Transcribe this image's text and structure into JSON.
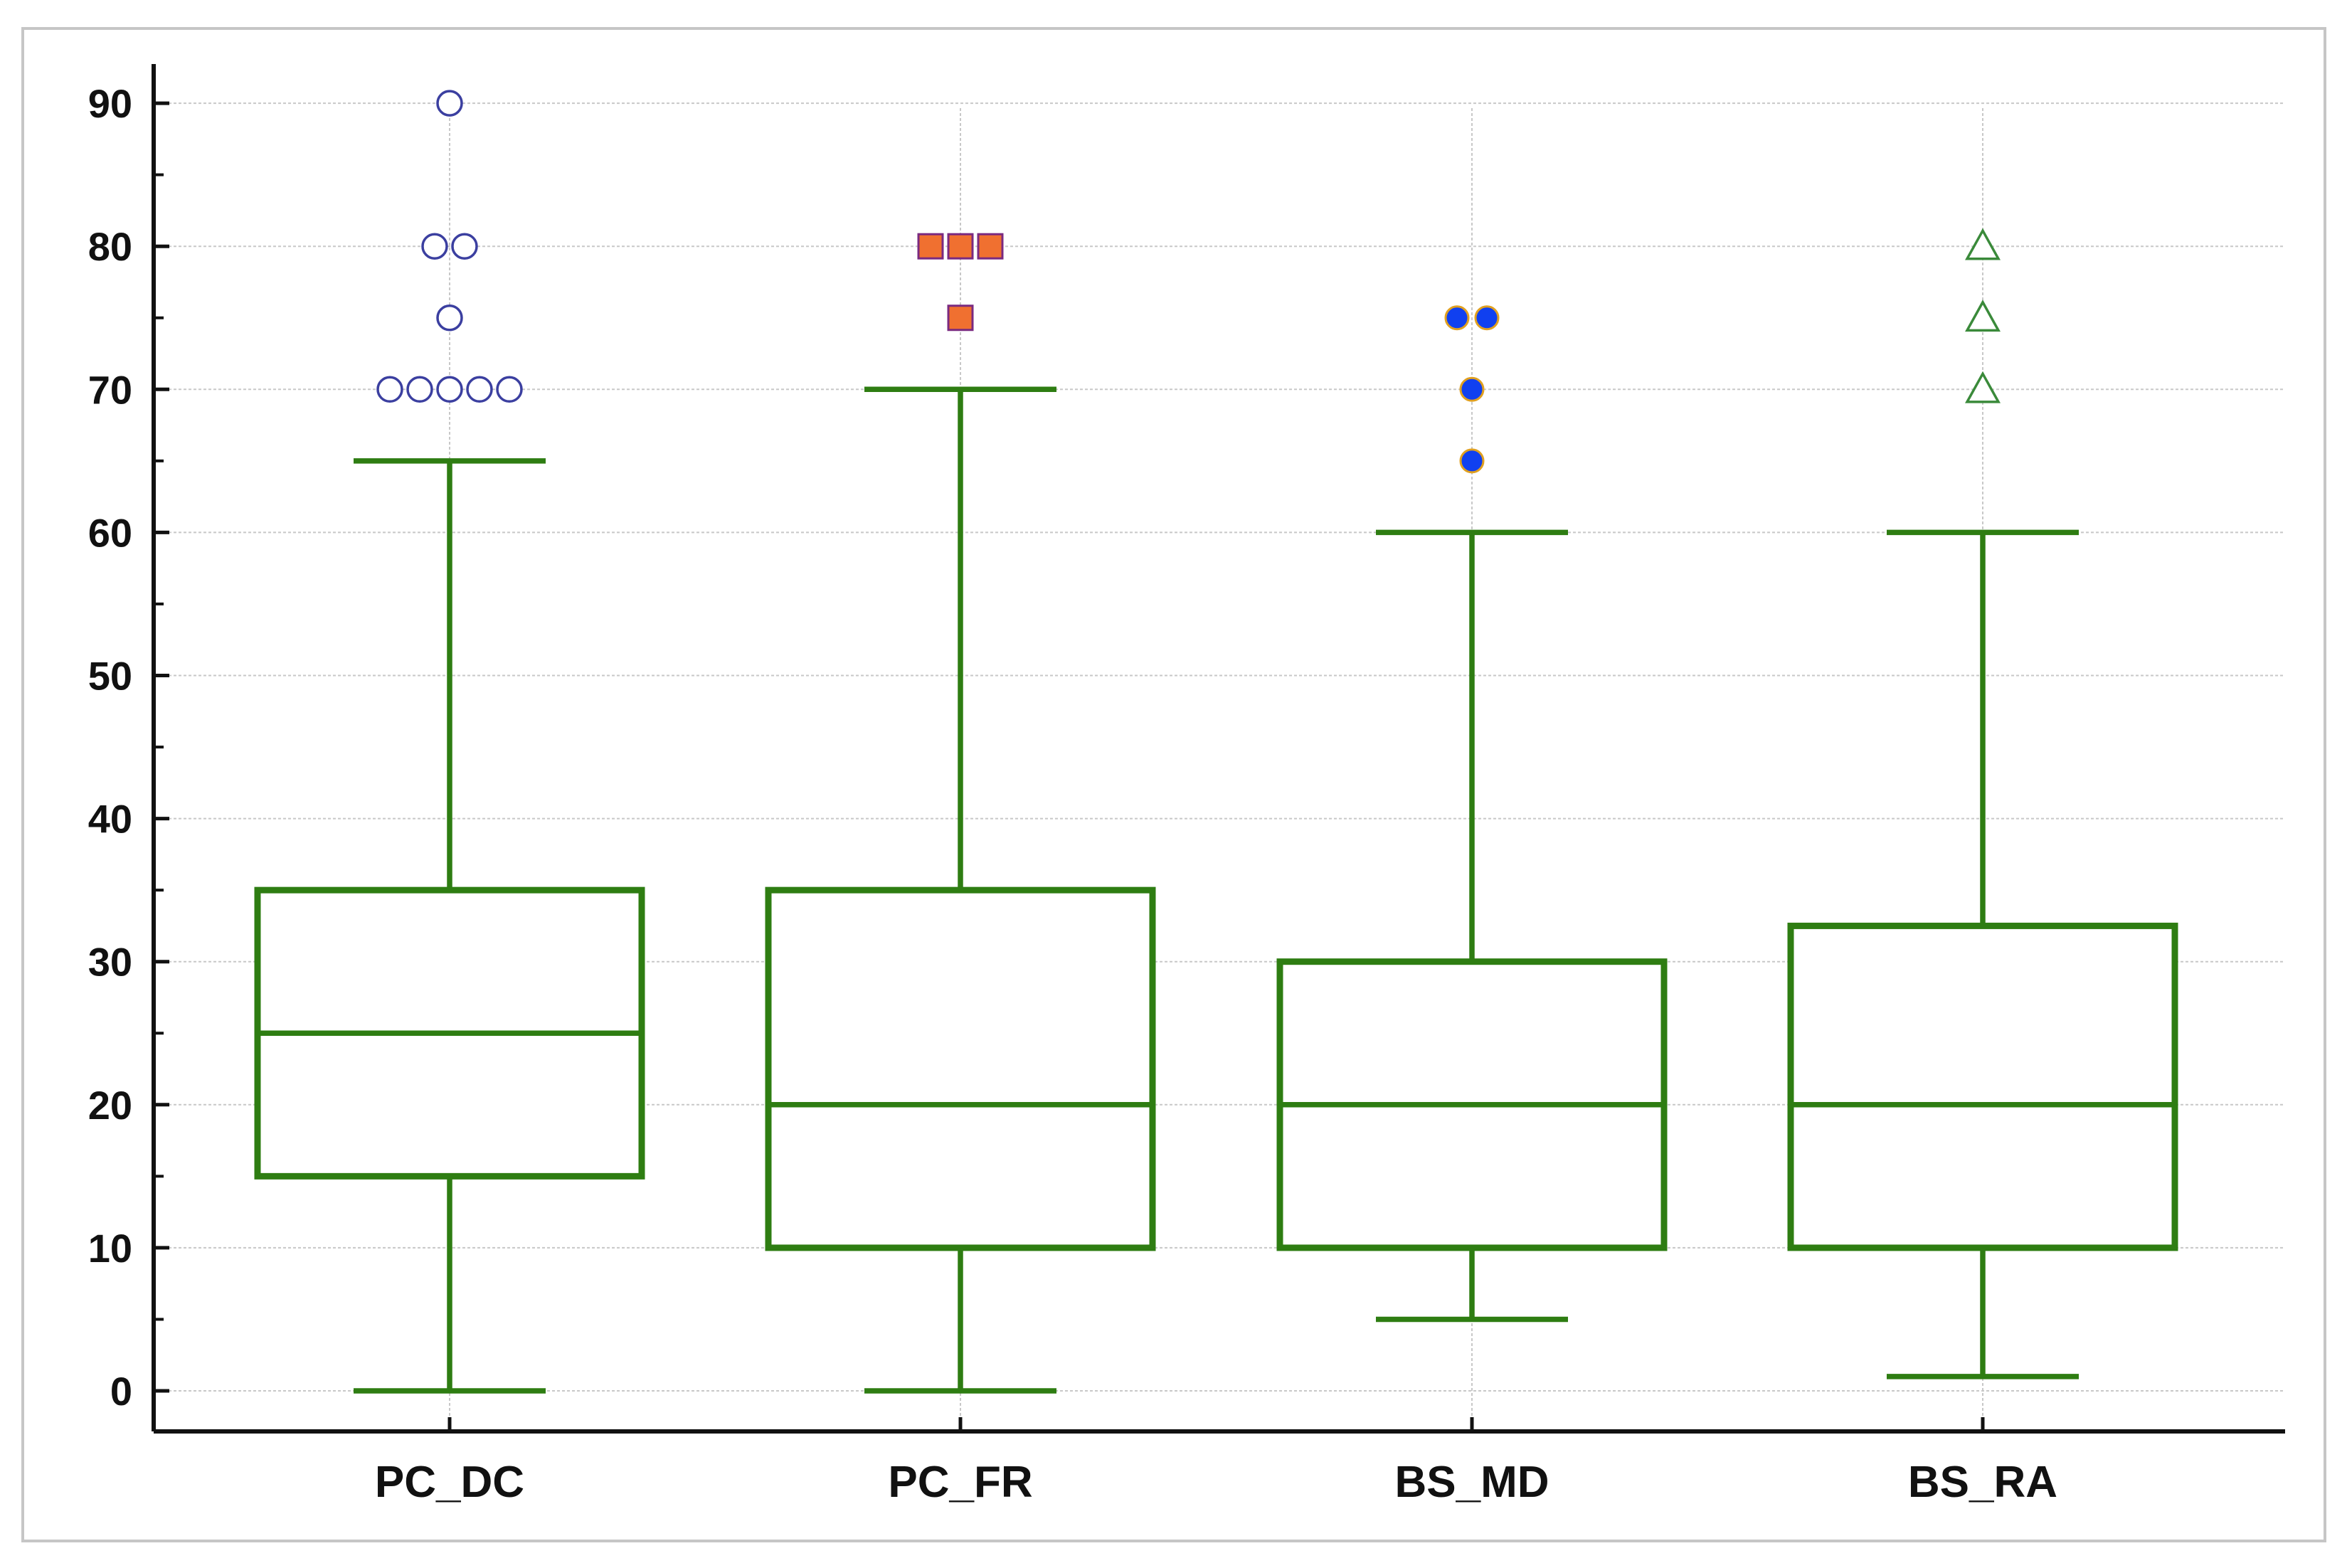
{
  "chart_data": {
    "type": "boxplot",
    "title": "",
    "xlabel": "",
    "ylabel": "",
    "ylim": [
      -6,
      96
    ],
    "y_ticks": [
      0,
      10,
      20,
      30,
      40,
      50,
      60,
      70,
      80,
      90
    ],
    "y_tick_labels": [
      "0",
      "10",
      "20",
      "30",
      "40",
      "50",
      "60",
      "70",
      "80",
      "90"
    ],
    "grid": true,
    "categories": [
      "PC_DC",
      "PC_FR",
      "BS_MD",
      "BS_RA"
    ],
    "box_color": "#2e7d12",
    "grid_color": "#c8c8c8",
    "axis_color": "#111111",
    "boxes": [
      {
        "name": "PC_DC",
        "whisker_low": 0,
        "q1": 15,
        "median": 25,
        "q3": 35,
        "whisker_high": 65,
        "outliers": [
          70,
          70,
          70,
          70,
          70,
          75,
          80,
          80,
          90
        ],
        "marker": "circle-open",
        "marker_fill": "#ffffff",
        "marker_stroke": "#3b3fa0"
      },
      {
        "name": "PC_FR",
        "whisker_low": 0,
        "q1": 10,
        "median": 20,
        "q3": 35,
        "whisker_high": 70,
        "outliers": [
          75,
          80,
          80,
          80
        ],
        "marker": "square-filled",
        "marker_fill": "#f07030",
        "marker_stroke": "#7a2a80"
      },
      {
        "name": "BS_MD",
        "whisker_low": 5,
        "q1": 10,
        "median": 20,
        "q3": 30,
        "whisker_high": 60,
        "outliers": [
          65,
          70,
          75,
          75
        ],
        "marker": "circle-filled",
        "marker_fill": "#1040f0",
        "marker_stroke": "#e0a020"
      },
      {
        "name": "BS_RA",
        "whisker_low": 1,
        "q1": 10,
        "median": 20,
        "q3": 32.5,
        "whisker_high": 60,
        "outliers": [
          70,
          75,
          80
        ],
        "marker": "triangle-open",
        "marker_fill": "#ffffff",
        "marker_stroke": "#3a8a3a"
      }
    ]
  }
}
